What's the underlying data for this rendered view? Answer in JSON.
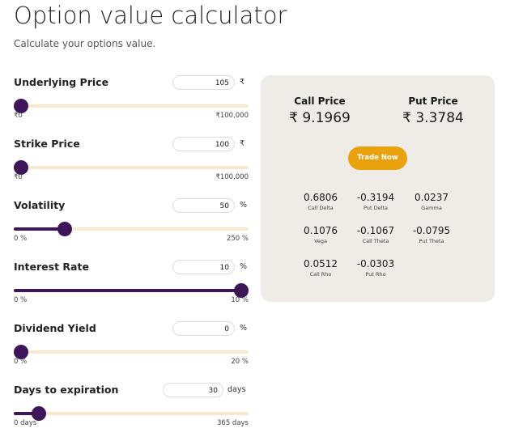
{
  "header": {
    "title": "Option value calculator",
    "subtitle": "Calculate your options value."
  },
  "inputs": [
    {
      "label": "Underlying Price",
      "value": 105,
      "unit": "₹",
      "min": {
        "value": 0,
        "label": "₹0"
      },
      "max": {
        "value": 100000,
        "label": "₹100,000"
      }
    },
    {
      "label": "Strike Price",
      "value": 100,
      "unit": "₹",
      "min": {
        "value": 0,
        "label": "₹0"
      },
      "max": {
        "value": 100000,
        "label": "₹100,000"
      }
    },
    {
      "label": "Volatility",
      "value": 50,
      "unit": "%",
      "min": {
        "value": 0,
        "label": "0 %"
      },
      "max": {
        "value": 250,
        "label": "250 %"
      }
    },
    {
      "label": "Interest Rate",
      "value": 10,
      "unit": "%",
      "min": {
        "value": 0,
        "label": "0 %"
      },
      "max": {
        "value": 10,
        "label": "10 %"
      }
    },
    {
      "label": "Dividend Yield",
      "value": 0,
      "unit": "%",
      "min": {
        "value": 0,
        "label": "0 %"
      },
      "max": {
        "value": 20,
        "label": "20 %"
      }
    },
    {
      "label": "Days to expiration",
      "value": 30,
      "unit": "days",
      "min": {
        "value": 0,
        "label": "0 days"
      },
      "max": {
        "value": 365,
        "label": "365 days"
      }
    }
  ],
  "results": {
    "prices": [
      {
        "label": "Call Price",
        "value": "₹ 9.1969"
      },
      {
        "label": "Put Price",
        "value": "₹ 3.3784"
      }
    ],
    "button": "Trade Now",
    "greeks": [
      {
        "value": "0.6806",
        "label": "Call Delta"
      },
      {
        "value": "-0.3194",
        "label": "Put Delta"
      },
      {
        "value": "0.0237",
        "label": "Gamma"
      },
      {
        "value": "0.1076",
        "label": "Vega"
      },
      {
        "value": "-0.1067",
        "label": "Call Theta"
      },
      {
        "value": "-0.0795",
        "label": "Put Theta"
      },
      {
        "value": "0.0512",
        "label": "Call Rho"
      },
      {
        "value": "-0.0303",
        "label": "Put Rho"
      }
    ]
  }
}
